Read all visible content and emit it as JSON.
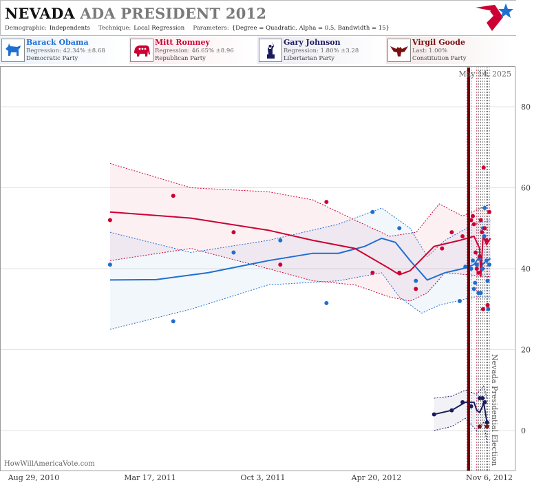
{
  "header": {
    "title_main": "NEVADA",
    "title_rest": "ADA PRESIDENT 2012",
    "demographic_label": "Demographic:",
    "demographic_value": "Independents",
    "technique_label": "Technique:",
    "technique_value": "Local Regression",
    "parameters_label": "Parameters:",
    "parameters_value": "{Degree = Quadratic, Alpha = 0.5, Bandwidth = 15}"
  },
  "candidates": [
    {
      "name": "Barack Obama",
      "stat": "Regression: 42.34% ±8.68",
      "party": "Democratic Party",
      "color": "#1f6fd1",
      "icon": "donkey-icon"
    },
    {
      "name": "Mitt Romney",
      "stat": "Regression: 46.65% ±8.96",
      "party": "Republican Party",
      "color": "#cc0033",
      "icon": "elephant-icon"
    },
    {
      "name": "Gary Johnson",
      "stat": "Regression: 1.80% ±3.28",
      "party": "Libertarian Party",
      "color": "#1a1a5e",
      "icon": "statue-of-liberty-icon"
    },
    {
      "name": "Virgil Goode",
      "stat": "Last: 1.00%",
      "party": "Constitution Party",
      "color": "#7a1010",
      "icon": "eagle-icon"
    }
  ],
  "source": "HowWillAmericaVote.com",
  "chart_data": {
    "type": "scatter",
    "xlabels": [
      "Aug 29, 2010",
      "Mar 17, 2011",
      "Oct 3, 2011",
      "Apr 20, 2012",
      "Nov 6, 2012"
    ],
    "xlim": [
      "2010-08-29",
      "2012-11-15"
    ],
    "ylim": [
      -5,
      90
    ],
    "yticks": [
      0,
      20,
      40,
      60,
      80
    ],
    "date_annotation": "May 14, 2025",
    "election_annotation": "Nevada Presidential Election",
    "election_date": "2012-11-06",
    "poll_dates": [
      "2012-09-28",
      "2012-10-05",
      "2012-10-15",
      "2012-10-18",
      "2012-10-22",
      "2012-10-25",
      "2012-10-29",
      "2012-11-01",
      "2012-11-03",
      "2012-11-06"
    ],
    "colors": {
      "obama": "#1f6fd1",
      "romney": "#cc0033",
      "johnson": "#1a1a5e",
      "goode": "#7a1010",
      "election": "#6e0000"
    },
    "series": [
      {
        "name": "Barack Obama",
        "key": "obama",
        "trend": [
          [
            "2011-01-10",
            37.2
          ],
          [
            "2011-04-01",
            37.3
          ],
          [
            "2011-07-01",
            39
          ],
          [
            "2011-10-15",
            42
          ],
          [
            "2012-01-01",
            43.8
          ],
          [
            "2012-02-15",
            43.8
          ],
          [
            "2012-04-01",
            45.5
          ],
          [
            "2012-05-01",
            47.5
          ],
          [
            "2012-05-25",
            46.5
          ],
          [
            "2012-06-20",
            42
          ],
          [
            "2012-07-20",
            37.2
          ],
          [
            "2012-08-20",
            39
          ],
          [
            "2012-09-20",
            40
          ],
          [
            "2012-10-10",
            41
          ],
          [
            "2012-10-20",
            43
          ],
          [
            "2012-10-25",
            41
          ],
          [
            "2012-11-01",
            42
          ],
          [
            "2012-11-08",
            42.5
          ]
        ],
        "upper": [
          [
            "2011-01-10",
            49
          ],
          [
            "2011-06-01",
            44
          ],
          [
            "2011-10-15",
            47
          ],
          [
            "2012-02-15",
            51
          ],
          [
            "2012-05-01",
            55
          ],
          [
            "2012-06-20",
            50
          ],
          [
            "2012-07-20",
            43
          ],
          [
            "2012-08-20",
            47
          ],
          [
            "2012-10-10",
            51
          ],
          [
            "2012-11-08",
            52
          ]
        ],
        "lower": [
          [
            "2011-01-10",
            25
          ],
          [
            "2011-06-01",
            30
          ],
          [
            "2011-10-15",
            36
          ],
          [
            "2012-02-15",
            37
          ],
          [
            "2012-05-01",
            39
          ],
          [
            "2012-06-01",
            33
          ],
          [
            "2012-07-10",
            29
          ],
          [
            "2012-08-10",
            31
          ],
          [
            "2012-10-10",
            33
          ],
          [
            "2012-11-08",
            33
          ]
        ],
        "points": [
          [
            "2011-01-10",
            41
          ],
          [
            "2011-05-01",
            27
          ],
          [
            "2011-08-15",
            44
          ],
          [
            "2011-11-05",
            47
          ],
          [
            "2012-01-25",
            31.5
          ],
          [
            "2012-04-15",
            54
          ],
          [
            "2012-06-01",
            50
          ],
          [
            "2012-06-30",
            37
          ],
          [
            "2012-09-15",
            32
          ],
          [
            "2012-09-25",
            40.5
          ],
          [
            "2012-10-05",
            40
          ],
          [
            "2012-10-08",
            42
          ],
          [
            "2012-10-10",
            35
          ],
          [
            "2012-10-12",
            36.5
          ],
          [
            "2012-10-15",
            41
          ],
          [
            "2012-10-18",
            34
          ],
          [
            "2012-10-20",
            42.5
          ],
          [
            "2012-10-22",
            34
          ],
          [
            "2012-10-25",
            40
          ],
          [
            "2012-10-26",
            50
          ],
          [
            "2012-10-28",
            48
          ],
          [
            "2012-10-29",
            55
          ],
          [
            "2012-11-01",
            42
          ],
          [
            "2012-11-03",
            37
          ],
          [
            "2012-11-04",
            30
          ],
          [
            "2012-11-06",
            41
          ]
        ]
      },
      {
        "name": "Mitt Romney",
        "key": "romney",
        "trend": [
          [
            "2011-01-10",
            54
          ],
          [
            "2011-06-01",
            52.5
          ],
          [
            "2011-10-15",
            49.5
          ],
          [
            "2012-01-01",
            47
          ],
          [
            "2012-03-15",
            45
          ],
          [
            "2012-05-15",
            40
          ],
          [
            "2012-06-01",
            38.5
          ],
          [
            "2012-06-20",
            39.5
          ],
          [
            "2012-08-01",
            45.5
          ],
          [
            "2012-09-15",
            47
          ],
          [
            "2012-10-10",
            48
          ],
          [
            "2012-10-20",
            45
          ],
          [
            "2012-10-22",
            38
          ],
          [
            "2012-10-26",
            48
          ],
          [
            "2012-11-01",
            46
          ],
          [
            "2012-11-08",
            47.5
          ]
        ],
        "upper": [
          [
            "2011-01-10",
            66
          ],
          [
            "2011-06-01",
            60
          ],
          [
            "2011-10-15",
            59
          ],
          [
            "2012-01-01",
            57
          ],
          [
            "2012-03-15",
            52
          ],
          [
            "2012-05-15",
            48
          ],
          [
            "2012-07-01",
            49
          ],
          [
            "2012-08-10",
            56
          ],
          [
            "2012-09-20",
            53
          ],
          [
            "2012-11-08",
            56
          ]
        ],
        "lower": [
          [
            "2011-01-10",
            42
          ],
          [
            "2011-06-01",
            45
          ],
          [
            "2011-10-15",
            40
          ],
          [
            "2012-01-01",
            37
          ],
          [
            "2012-03-15",
            36
          ],
          [
            "2012-05-15",
            33
          ],
          [
            "2012-06-20",
            32
          ],
          [
            "2012-07-20",
            34
          ],
          [
            "2012-08-20",
            39
          ],
          [
            "2012-11-08",
            38
          ]
        ],
        "points": [
          [
            "2011-01-10",
            52
          ],
          [
            "2011-05-01",
            58
          ],
          [
            "2011-08-15",
            49
          ],
          [
            "2011-11-05",
            41
          ],
          [
            "2012-01-25",
            56.5
          ],
          [
            "2012-04-15",
            39
          ],
          [
            "2012-06-01",
            39
          ],
          [
            "2012-06-30",
            35
          ],
          [
            "2012-08-15",
            45
          ],
          [
            "2012-09-01",
            49
          ],
          [
            "2012-09-20",
            48
          ],
          [
            "2012-10-05",
            52
          ],
          [
            "2012-10-08",
            53
          ],
          [
            "2012-10-10",
            51
          ],
          [
            "2012-10-13",
            44
          ],
          [
            "2012-10-15",
            40
          ],
          [
            "2012-10-18",
            39
          ],
          [
            "2012-10-20",
            43
          ],
          [
            "2012-10-22",
            52
          ],
          [
            "2012-10-24",
            49
          ],
          [
            "2012-10-26",
            30
          ],
          [
            "2012-10-27",
            65
          ],
          [
            "2012-10-29",
            50
          ],
          [
            "2012-11-01",
            47
          ],
          [
            "2012-11-03",
            31
          ],
          [
            "2012-11-06",
            54
          ]
        ]
      },
      {
        "name": "Gary Johnson",
        "key": "johnson",
        "trend": [
          [
            "2012-08-01",
            4
          ],
          [
            "2012-09-01",
            5
          ],
          [
            "2012-09-25",
            7
          ],
          [
            "2012-10-10",
            7
          ],
          [
            "2012-10-15",
            5
          ],
          [
            "2012-10-20",
            4.5
          ],
          [
            "2012-10-25",
            6
          ],
          [
            "2012-10-27",
            7
          ],
          [
            "2012-11-02",
            2
          ]
        ],
        "upper": [
          [
            "2012-08-01",
            8
          ],
          [
            "2012-09-01",
            8.5
          ],
          [
            "2012-09-25",
            10
          ],
          [
            "2012-10-15",
            9
          ],
          [
            "2012-10-27",
            11
          ],
          [
            "2012-11-02",
            8
          ]
        ],
        "lower": [
          [
            "2012-08-01",
            0
          ],
          [
            "2012-09-01",
            1
          ],
          [
            "2012-09-25",
            3
          ],
          [
            "2012-10-15",
            0
          ],
          [
            "2012-10-27",
            2
          ],
          [
            "2012-11-02",
            -3
          ]
        ],
        "points": [
          [
            "2012-08-01",
            4
          ],
          [
            "2012-09-01",
            5
          ],
          [
            "2012-09-20",
            7
          ],
          [
            "2012-10-05",
            6
          ],
          [
            "2012-10-20",
            8
          ],
          [
            "2012-10-25",
            8
          ],
          [
            "2012-10-29",
            7
          ],
          [
            "2012-11-02",
            2
          ]
        ]
      },
      {
        "name": "Virgil Goode",
        "key": "goode",
        "trend": [],
        "upper": [],
        "lower": [],
        "points": [
          [
            "2012-10-20",
            1
          ],
          [
            "2012-11-02",
            1
          ]
        ]
      }
    ]
  }
}
